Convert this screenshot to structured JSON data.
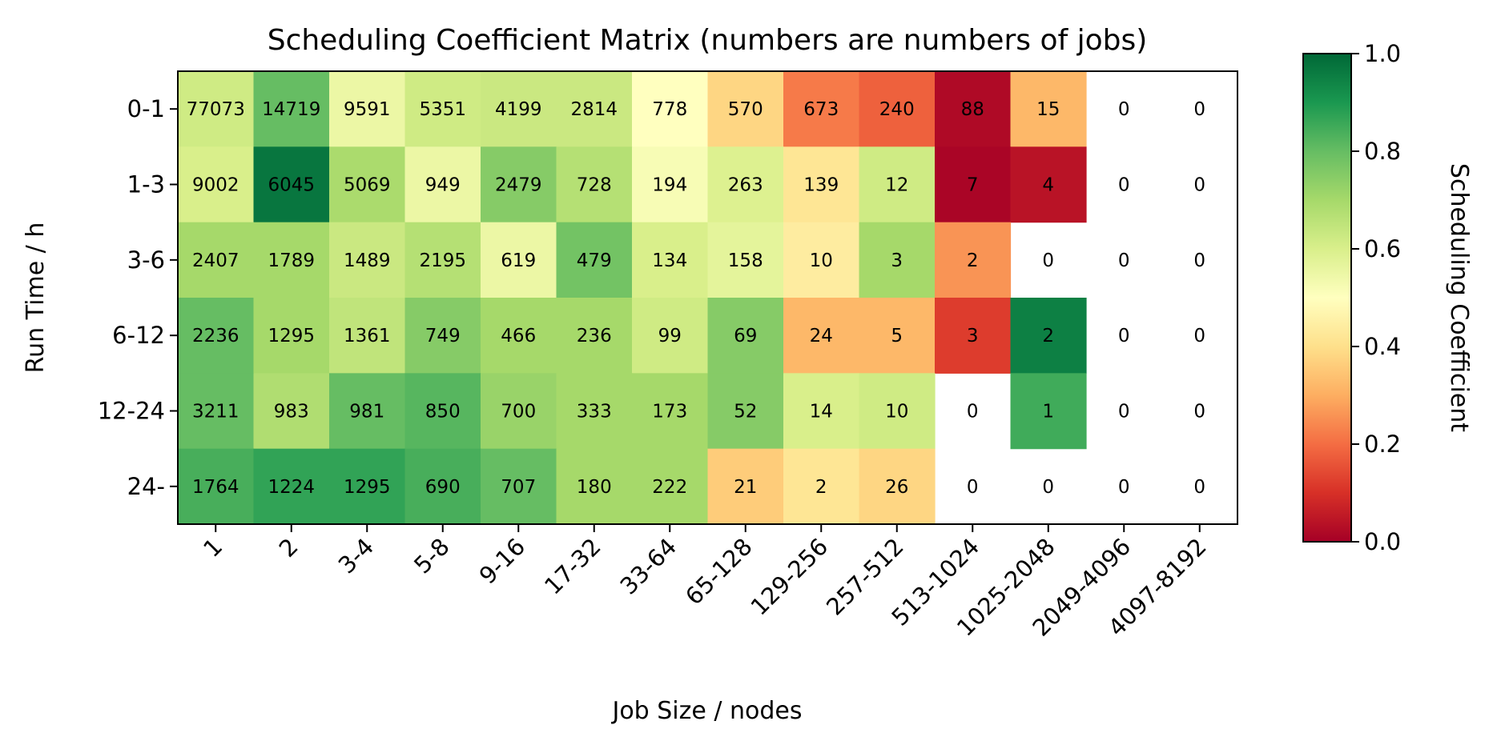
{
  "chart_data": {
    "type": "heatmap",
    "title": "Scheduling Coefficient Matrix (numbers are numbers of jobs)",
    "xlabel": "Job Size / nodes",
    "ylabel": "Run Time / h",
    "x_categories": [
      "1",
      "2",
      "3-4",
      "5-8",
      "9-16",
      "17-32",
      "33-64",
      "65-128",
      "129-256",
      "257-512",
      "513-1024",
      "1025-2048",
      "2049-4096",
      "4097-8192"
    ],
    "y_categories": [
      "0-1",
      "1-3",
      "3-6",
      "6-12",
      "12-24",
      "24-"
    ],
    "job_counts": [
      [
        77073,
        14719,
        9591,
        5351,
        4199,
        2814,
        778,
        570,
        673,
        240,
        88,
        15,
        0,
        0
      ],
      [
        9002,
        6045,
        5069,
        949,
        2479,
        728,
        194,
        263,
        139,
        12,
        7,
        4,
        0,
        0
      ],
      [
        2407,
        1789,
        1489,
        2195,
        619,
        479,
        134,
        158,
        10,
        3,
        2,
        0,
        0,
        0
      ],
      [
        2236,
        1295,
        1361,
        749,
        466,
        236,
        99,
        69,
        24,
        5,
        3,
        2,
        0,
        0
      ],
      [
        3211,
        983,
        981,
        850,
        700,
        333,
        173,
        52,
        14,
        10,
        0,
        1,
        0,
        0
      ],
      [
        1764,
        1224,
        1295,
        690,
        707,
        180,
        222,
        21,
        2,
        26,
        0,
        0,
        0,
        0
      ]
    ],
    "coefficients": [
      [
        0.62,
        0.8,
        0.55,
        0.62,
        0.63,
        0.63,
        0.5,
        0.38,
        0.22,
        0.18,
        0.02,
        0.32,
        null,
        null
      ],
      [
        0.6,
        0.97,
        0.69,
        0.55,
        0.75,
        0.67,
        0.52,
        0.59,
        0.42,
        0.62,
        0.01,
        0.04,
        null,
        null
      ],
      [
        0.7,
        0.7,
        0.63,
        0.67,
        0.55,
        0.78,
        0.6,
        0.57,
        0.44,
        0.7,
        0.26,
        null,
        null,
        null
      ],
      [
        0.8,
        0.7,
        0.65,
        0.75,
        0.7,
        0.7,
        0.62,
        0.75,
        0.32,
        0.32,
        0.12,
        0.95,
        null,
        null
      ],
      [
        0.8,
        0.68,
        0.8,
        0.82,
        0.72,
        0.7,
        0.7,
        0.75,
        0.6,
        0.62,
        null,
        0.85,
        null,
        null
      ],
      [
        0.84,
        0.87,
        0.87,
        0.84,
        0.8,
        0.7,
        0.7,
        0.36,
        0.42,
        0.38,
        null,
        null,
        null,
        null
      ]
    ],
    "colormap": "RdYlGn",
    "colorbar": {
      "label": "Scheduling Coefficient",
      "range": [
        0.0,
        1.0
      ],
      "ticks": [
        "0.0",
        "0.2",
        "0.4",
        "0.6",
        "0.8",
        "1.0"
      ]
    },
    "colors": {
      "frame": "#000000",
      "text": "#000000",
      "empty_cell": "#ffffff"
    }
  }
}
